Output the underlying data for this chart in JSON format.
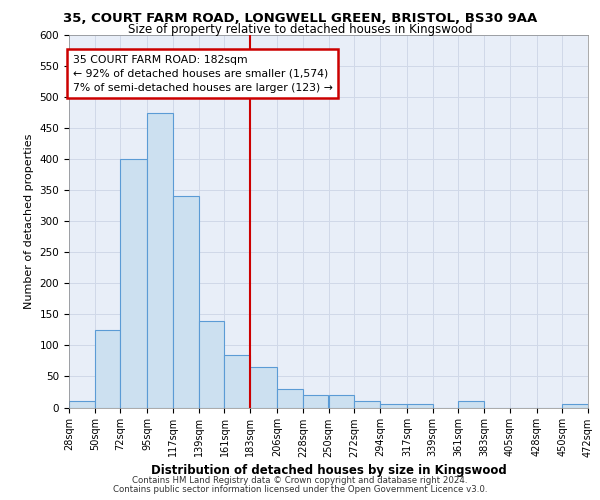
{
  "title_line1": "35, COURT FARM ROAD, LONGWELL GREEN, BRISTOL, BS30 9AA",
  "title_line2": "Size of property relative to detached houses in Kingswood",
  "xlabel": "Distribution of detached houses by size in Kingswood",
  "ylabel": "Number of detached properties",
  "bin_edges": [
    28,
    50,
    72,
    95,
    117,
    139,
    161,
    183,
    206,
    228,
    250,
    272,
    294,
    317,
    339,
    361,
    383,
    405,
    428,
    450,
    472
  ],
  "bin_labels": [
    "28sqm",
    "50sqm",
    "72sqm",
    "95sqm",
    "117sqm",
    "139sqm",
    "161sqm",
    "183sqm",
    "206sqm",
    "228sqm",
    "250sqm",
    "272sqm",
    "294sqm",
    "317sqm",
    "339sqm",
    "361sqm",
    "383sqm",
    "405sqm",
    "428sqm",
    "450sqm",
    "472sqm"
  ],
  "bar_heights": [
    10,
    125,
    400,
    475,
    340,
    140,
    85,
    65,
    30,
    20,
    20,
    10,
    5,
    5,
    0,
    10,
    0,
    0,
    0,
    5
  ],
  "bar_color": "#cce0f0",
  "bar_edge_color": "#5b9bd5",
  "vline_x": 183,
  "vline_color": "#cc0000",
  "annotation_line1": "35 COURT FARM ROAD: 182sqm",
  "annotation_line2": "← 92% of detached houses are smaller (1,574)",
  "annotation_line3": "7% of semi-detached houses are larger (123) →",
  "annotation_box_color": "#ffffff",
  "annotation_box_edge": "#cc0000",
  "ylim": [
    0,
    600
  ],
  "yticks": [
    0,
    50,
    100,
    150,
    200,
    250,
    300,
    350,
    400,
    450,
    500,
    550,
    600
  ],
  "grid_color": "#d0d8e8",
  "background_color": "#e8eef8",
  "footer_line1": "Contains HM Land Registry data © Crown copyright and database right 2024.",
  "footer_line2": "Contains public sector information licensed under the Open Government Licence v3.0."
}
